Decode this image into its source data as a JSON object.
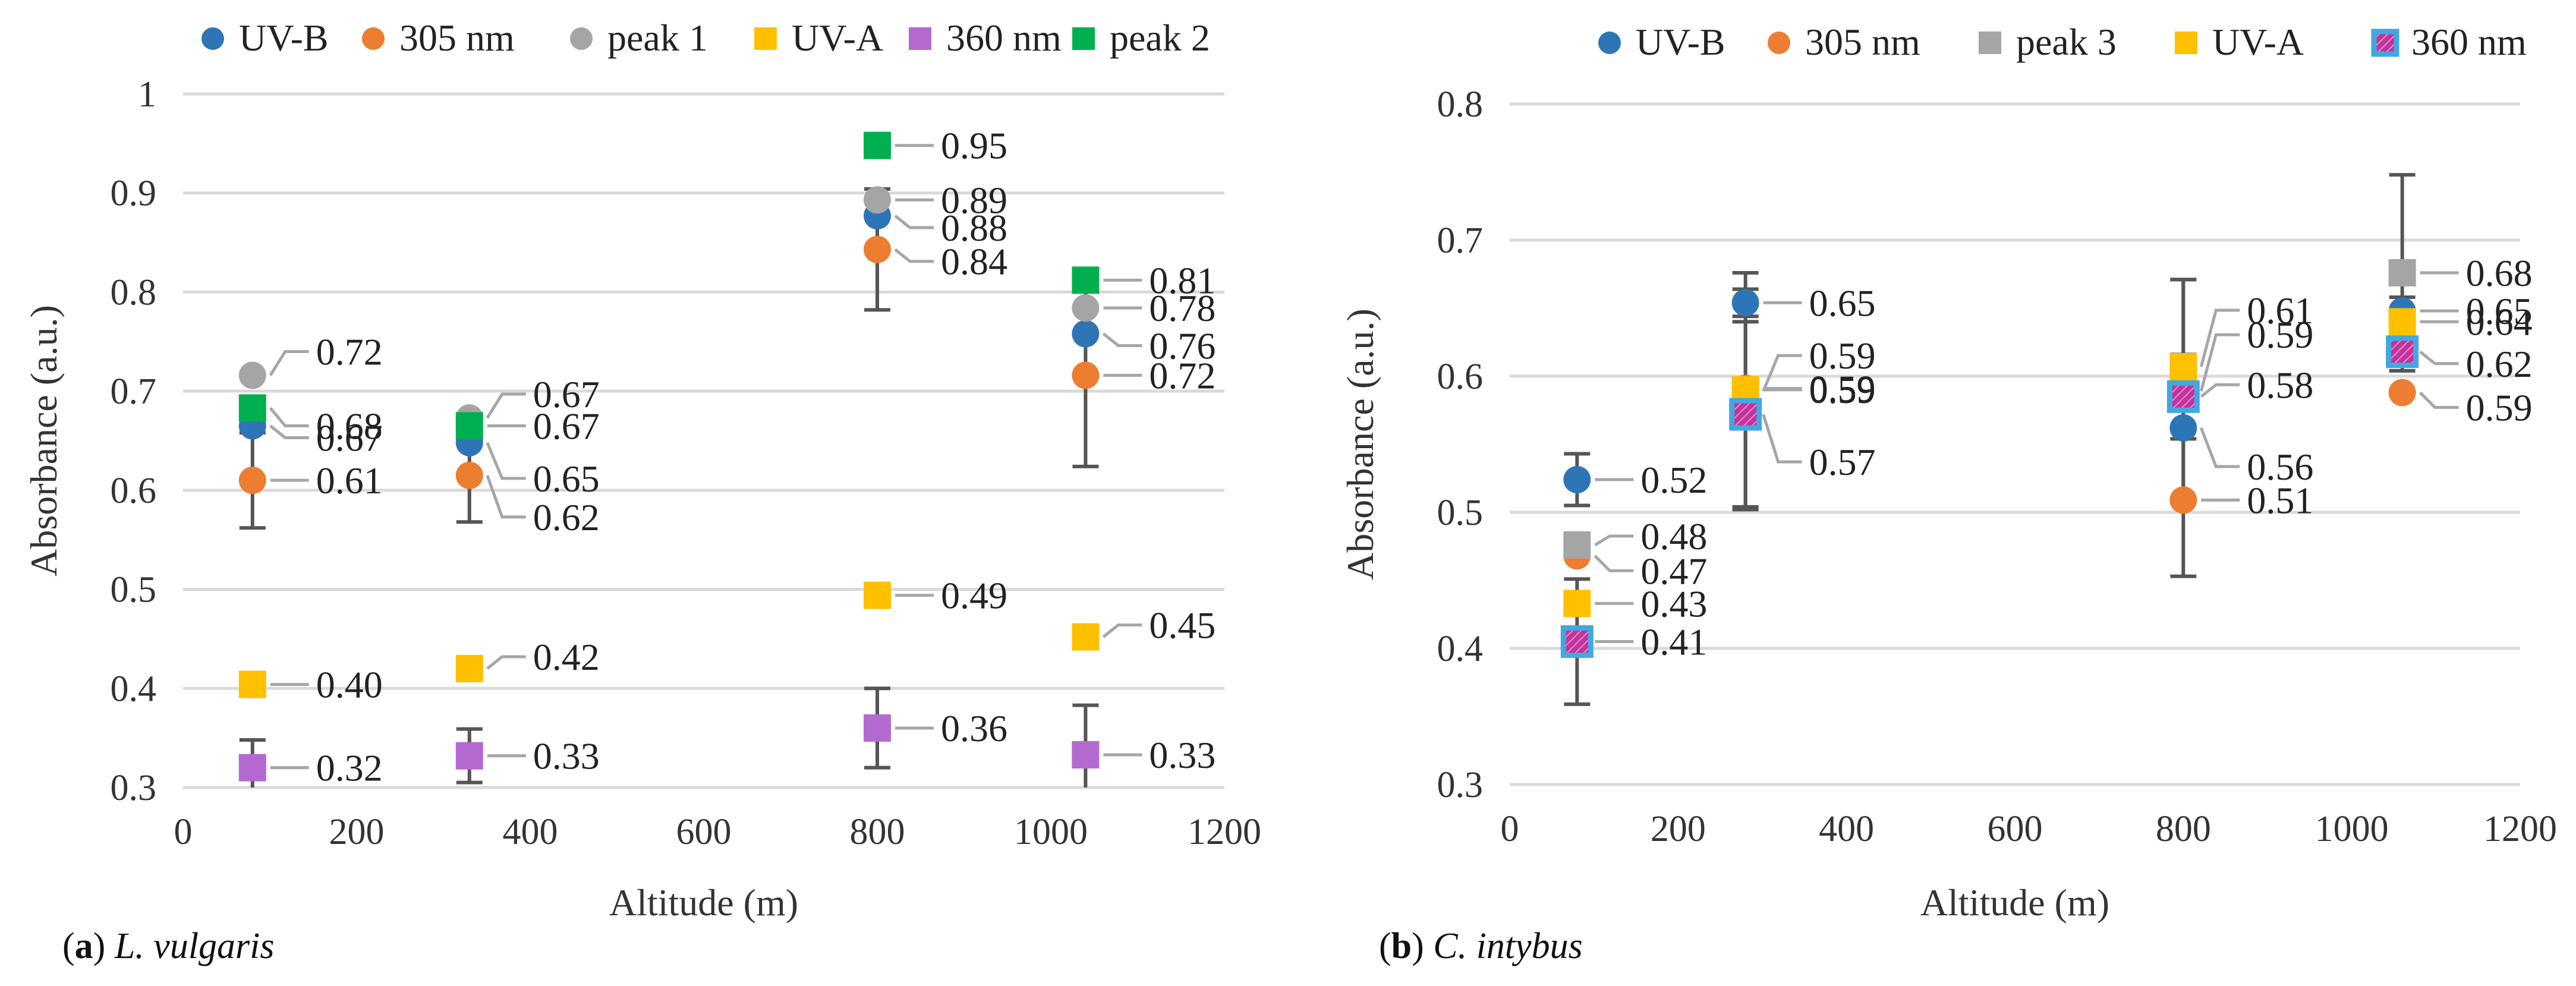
{
  "chart_data": [
    {
      "type": "scatter",
      "panel_label": "a",
      "species": "L. vulgaris",
      "xlabel": "Altitude (m)",
      "ylabel": "Absorbance (a.u.)",
      "xlim": [
        0,
        1200
      ],
      "ylim": [
        0.3,
        1.0
      ],
      "xticks": [
        0,
        200,
        400,
        600,
        800,
        1000,
        1200
      ],
      "yticks": [
        0.3,
        0.4,
        0.5,
        0.6,
        0.7,
        0.8,
        0.9,
        1.0
      ],
      "ytick_labels": [
        "0.3",
        "0.4",
        "0.5",
        "0.6",
        "0.7",
        "0.8",
        "0.9",
        "1"
      ],
      "grid": true,
      "legend_position": "top",
      "series": [
        {
          "name": "UV-B",
          "marker": "circle",
          "color": "#2e75b6",
          "x": [
            80,
            330,
            800,
            1040
          ],
          "values": [
            0.665,
            0.648,
            0.877,
            0.758
          ],
          "labels": [
            "0.67",
            "0.65",
            "0.88",
            "0.76"
          ]
        },
        {
          "name": "305 nm",
          "marker": "circle",
          "color": "#ed7d31",
          "x": [
            80,
            330,
            800,
            1040
          ],
          "values": [
            0.61,
            0.615,
            0.843,
            0.716
          ],
          "labels": [
            "0.61",
            "0.62",
            "0.84",
            "0.72"
          ],
          "error": [
            0.048,
            0.047,
            0.061,
            0.092
          ]
        },
        {
          "name": "peak 1",
          "marker": "circle",
          "color": "#a5a5a5",
          "x": [
            80,
            330,
            800,
            1040
          ],
          "values": [
            0.716,
            0.673,
            0.893,
            0.784
          ],
          "labels": [
            "0.72",
            "0.67",
            "0.89",
            "0.78"
          ]
        },
        {
          "name": "UV-A",
          "marker": "square",
          "color": "#ffc000",
          "x": [
            80,
            330,
            800,
            1040
          ],
          "values": [
            0.404,
            0.42,
            0.494,
            0.452
          ],
          "labels": [
            "0.40",
            "0.42",
            "0.49",
            "0.45"
          ]
        },
        {
          "name": "360 nm",
          "marker": "square",
          "color": "#b469d0",
          "x": [
            80,
            330,
            800,
            1040
          ],
          "values": [
            0.32,
            0.332,
            0.36,
            0.333
          ],
          "labels": [
            "0.32",
            "0.33",
            "0.36",
            "0.33"
          ],
          "error": [
            0.028,
            0.027,
            0.04,
            0.05
          ]
        },
        {
          "name": "peak 2",
          "marker": "square",
          "color": "#00b050",
          "x": [
            80,
            330,
            800,
            1040
          ],
          "values": [
            0.683,
            0.665,
            0.948,
            0.812
          ],
          "labels": [
            "0.68",
            "0.67",
            "0.95",
            "0.81"
          ]
        }
      ]
    },
    {
      "type": "scatter",
      "panel_label": "b",
      "species": "C. intybus",
      "xlabel": "Altitude (m)",
      "ylabel": "Absorbance (a.u.)",
      "xlim": [
        0,
        1200
      ],
      "ylim": [
        0.3,
        0.8
      ],
      "xticks": [
        0,
        200,
        400,
        600,
        800,
        1000,
        1200
      ],
      "yticks": [
        0.3,
        0.4,
        0.5,
        0.6,
        0.7,
        0.8
      ],
      "ytick_labels": [
        "0.3",
        "0.4",
        "0.5",
        "0.6",
        "0.7",
        "0.8"
      ],
      "grid": true,
      "legend_position": "top",
      "series": [
        {
          "name": "UV-B",
          "marker": "circle",
          "color": "#2e75b6",
          "x": [
            80,
            280,
            800,
            1060
          ],
          "values": [
            0.524,
            0.654,
            0.562,
            0.648
          ],
          "labels": [
            "0.52",
            "0.65",
            "0.56",
            "0.65"
          ],
          "error": [
            0.019,
            0.01,
            0.109,
            0.01
          ]
        },
        {
          "name": "305 nm",
          "marker": "circle",
          "color": "#ed7d31",
          "x": [
            80,
            280,
            800,
            1060
          ],
          "values": [
            0.468,
            0.591,
            0.509,
            0.588
          ],
          "labels": [
            "0.47",
            "0.59",
            "0.51",
            "0.59"
          ]
        },
        {
          "name": "peak 3",
          "marker": "square",
          "color": "#a5a5a5",
          "x": [
            80,
            280,
            800,
            1060
          ],
          "values": [
            0.476,
            0.589,
            0.589,
            0.676
          ],
          "labels": [
            "0.48",
            "0.59",
            "0.59",
            "0.68"
          ],
          "error": [
            0.0,
            0.087,
            0.082,
            0.072
          ]
        },
        {
          "name": "UV-A",
          "marker": "square",
          "color": "#ffc000",
          "x": [
            80,
            280,
            800,
            1060
          ],
          "values": [
            0.433,
            0.59,
            0.607,
            0.64
          ],
          "labels": [
            "0.43",
            "0.59",
            "0.61",
            "0.64"
          ]
        },
        {
          "name": "360 nm",
          "marker": "square-pattern",
          "color": "#c2349b",
          "border": "#41a8e0",
          "x": [
            80,
            280,
            800,
            1060
          ],
          "values": [
            0.405,
            0.572,
            0.585,
            0.618
          ],
          "labels": [
            "0.41",
            "0.57",
            "0.58",
            "0.62"
          ],
          "error": [
            0.046,
            0.068,
            0.031,
            0.0
          ]
        }
      ]
    }
  ]
}
